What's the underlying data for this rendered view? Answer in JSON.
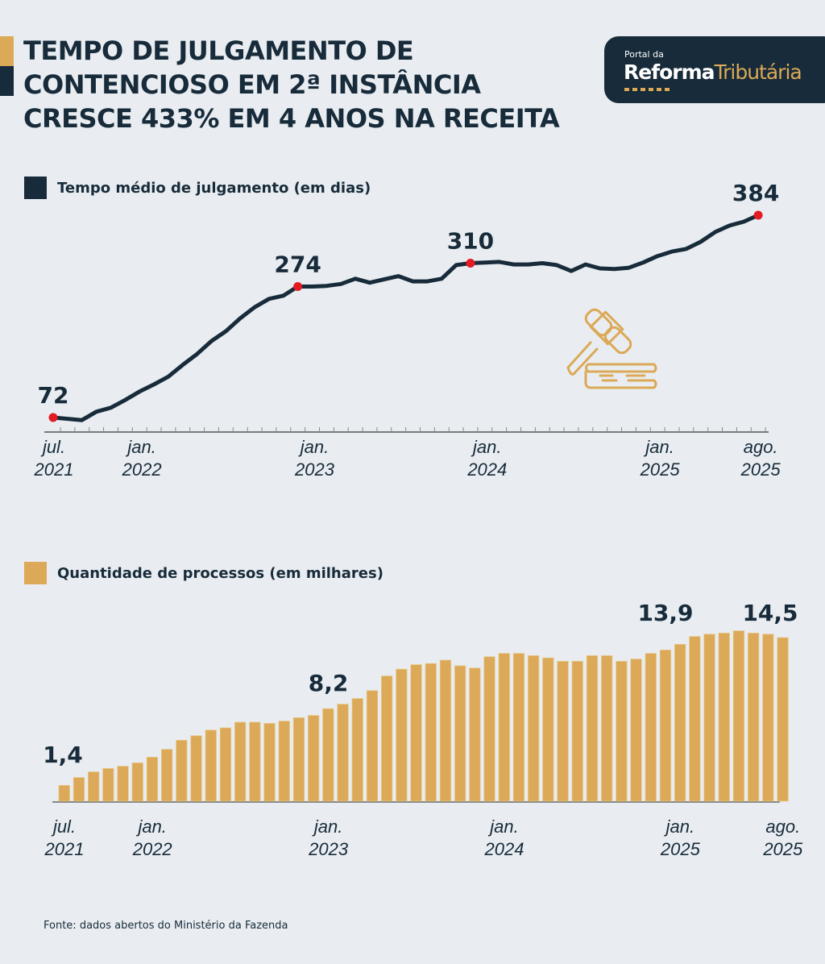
{
  "title": {
    "lines": [
      "TEMPO DE JULGAMENTO DE",
      "CONTENCIOSO EM 2ª INSTÂNCIA",
      "CRESCE 433% EM 4 ANOS NA RECEITA"
    ]
  },
  "logo": {
    "small": "Portal da",
    "word1": "Reforma",
    "word2": "Tributária"
  },
  "colors": {
    "navy": "#172b3a",
    "gold": "#dba957",
    "red": "#e31b23",
    "background": "#e9edf1"
  },
  "icons": {
    "decoration": "gavel-icon"
  },
  "source": "Fonte: dados abertos do Ministério da Fazenda",
  "chart_data": [
    {
      "type": "line",
      "legend": "Tempo médio de julgamento (em dias)",
      "x_start": "jul. 2021",
      "x_end": "ago. 2025",
      "tick_labels": [
        {
          "index": 0,
          "l1": "jul.",
          "l2": "2021"
        },
        {
          "index": 6,
          "l1": "jan.",
          "l2": "2022"
        },
        {
          "index": 18,
          "l1": "jan.",
          "l2": "2023"
        },
        {
          "index": 30,
          "l1": "jan.",
          "l2": "2024"
        },
        {
          "index": 42,
          "l1": "jan.",
          "l2": "2025"
        },
        {
          "index": 49,
          "l1": "ago.",
          "l2": "2025"
        }
      ],
      "values": [
        72,
        70,
        68,
        81,
        87,
        99,
        112,
        123,
        135,
        153,
        170,
        190,
        205,
        225,
        242,
        255,
        260,
        274,
        274,
        275,
        278,
        286,
        280,
        285,
        290,
        282,
        282,
        286,
        307,
        310,
        311,
        312,
        308,
        308,
        310,
        307,
        298,
        308,
        302,
        301,
        303,
        311,
        321,
        328,
        332,
        343,
        358,
        368,
        374,
        384
      ],
      "annotations": [
        {
          "index": 0,
          "label": "72"
        },
        {
          "index": 17,
          "label": "274"
        },
        {
          "index": 29,
          "label": "310"
        },
        {
          "index": 49,
          "label": "384"
        }
      ],
      "ylim": [
        72,
        384
      ]
    },
    {
      "type": "bar",
      "legend": "Quantidade de processos (em milhares)",
      "tick_labels": [
        {
          "index": 0,
          "l1": "jul.",
          "l2": "2021"
        },
        {
          "index": 6,
          "l1": "jan.",
          "l2": "2022"
        },
        {
          "index": 18,
          "l1": "jan.",
          "l2": "2023"
        },
        {
          "index": 30,
          "l1": "jan.",
          "l2": "2024"
        },
        {
          "index": 42,
          "l1": "jan.",
          "l2": "2025"
        },
        {
          "index": 49,
          "l1": "ago.",
          "l2": "2025"
        }
      ],
      "values": [
        1.4,
        2.1,
        2.6,
        2.9,
        3.1,
        3.4,
        3.9,
        4.6,
        5.4,
        5.8,
        6.3,
        6.5,
        7.0,
        7.0,
        6.9,
        7.1,
        7.4,
        7.6,
        8.2,
        8.6,
        9.1,
        9.8,
        11.1,
        11.7,
        12.1,
        12.2,
        12.5,
        12.0,
        11.8,
        12.8,
        13.1,
        13.1,
        12.9,
        12.7,
        12.4,
        12.4,
        12.9,
        12.9,
        12.4,
        12.6,
        13.1,
        13.4,
        13.9,
        14.6,
        14.8,
        14.9,
        15.1,
        14.9,
        14.8,
        14.5
      ],
      "annotations": [
        {
          "index": 0,
          "label": "1,4"
        },
        {
          "index": 18,
          "label": "8,2"
        },
        {
          "index": 42,
          "label": "13,9"
        },
        {
          "index": 49,
          "label": "14,5"
        }
      ],
      "ylim": [
        0,
        15.1
      ]
    }
  ]
}
